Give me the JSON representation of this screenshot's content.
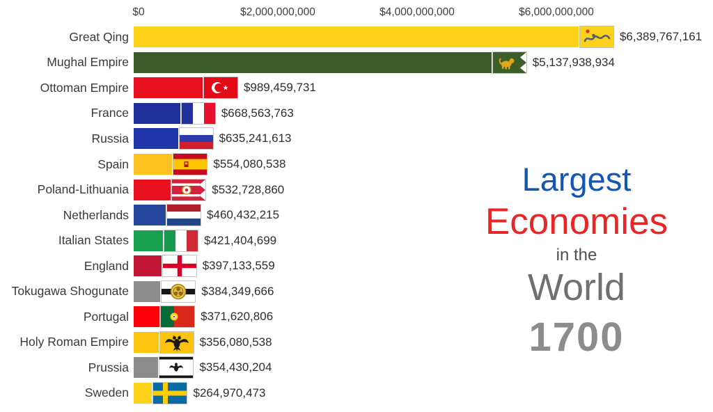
{
  "axis": {
    "ticks": [
      {
        "label": "$0",
        "value": 0
      },
      {
        "label": "$2,000,000,000",
        "value": 2000000000
      },
      {
        "label": "$4,000,000,000",
        "value": 4000000000
      },
      {
        "label": "$6,000,000,000",
        "value": 6000000000
      }
    ]
  },
  "title": {
    "lines": [
      {
        "text": "Largest",
        "color": "#1356b4"
      },
      {
        "text": "Economies",
        "color": "#e92525"
      },
      {
        "text": "in the",
        "color": "#4f4f4f"
      },
      {
        "text": "World",
        "color": "#6f6f6f"
      },
      {
        "text": "1700",
        "color": "#8c8c8c"
      }
    ]
  },
  "chart_data": {
    "type": "bar",
    "orientation": "horizontal",
    "unit": "USD",
    "xlim": [
      0,
      8000000000
    ],
    "grid": false,
    "legend": false,
    "year": "1700",
    "title": "Largest Economies in the World 1700",
    "series": [
      {
        "name": "Great Qing",
        "value": 6389767161,
        "label": "$6,389,767,161",
        "color": "#fdd118",
        "flag": "qing-dragon-flag"
      },
      {
        "name": "Mughal Empire",
        "value": 5137938934,
        "label": "$5,137,938,934",
        "color": "#3a5b28",
        "flag": "mughal-alam-flag"
      },
      {
        "name": "Ottoman Empire",
        "value": 989459731,
        "label": "$989,459,731",
        "color": "#e8101e",
        "flag": "ottoman-flag"
      },
      {
        "name": "France",
        "value": 668563763,
        "label": "$668,563,763",
        "color": "#1f2f9a",
        "flag": "france-flag"
      },
      {
        "name": "Russia",
        "value": 635241613,
        "label": "$635,241,613",
        "color": "#2036a8",
        "flag": "russia-flag"
      },
      {
        "name": "Spain",
        "value": 554080538,
        "label": "$554,080,538",
        "color": "#fcc11e",
        "flag": "spain-flag"
      },
      {
        "name": "Poland-Lithuania",
        "value": 532728860,
        "label": "$532,728,860",
        "color": "#e8101e",
        "flag": "poland-lithuania-banner"
      },
      {
        "name": "Netherlands",
        "value": 460432215,
        "label": "$460,432,215",
        "color": "#26479c",
        "flag": "netherlands-flag"
      },
      {
        "name": "Italian States",
        "value": 421404699,
        "label": "$421,404,699",
        "color": "#18a04e",
        "flag": "italy-flag"
      },
      {
        "name": "England",
        "value": 397133559,
        "label": "$397,133,559",
        "color": "#c21835",
        "flag": "england-st-george-flag"
      },
      {
        "name": "Tokugawa Shogunate",
        "value": 384349666,
        "label": "$384,349,666",
        "color": "#8c8c8c",
        "flag": "tokugawa-mon-flag"
      },
      {
        "name": "Portugal",
        "value": 371620806,
        "label": "$371,620,806",
        "color": "#fb0007",
        "flag": "portugal-flag"
      },
      {
        "name": "Holy Roman Empire",
        "value": 356080538,
        "label": "$356,080,538",
        "color": "#fcc40e",
        "flag": "holy-roman-empire-eagle-flag"
      },
      {
        "name": "Prussia",
        "value": 354430204,
        "label": "$354,430,204",
        "color": "#8c8c8c",
        "flag": "prussia-eagle-flag"
      },
      {
        "name": "Sweden",
        "value": 264970473,
        "label": "$264,970,473",
        "color": "#fdd118",
        "flag": "sweden-flag"
      }
    ]
  }
}
